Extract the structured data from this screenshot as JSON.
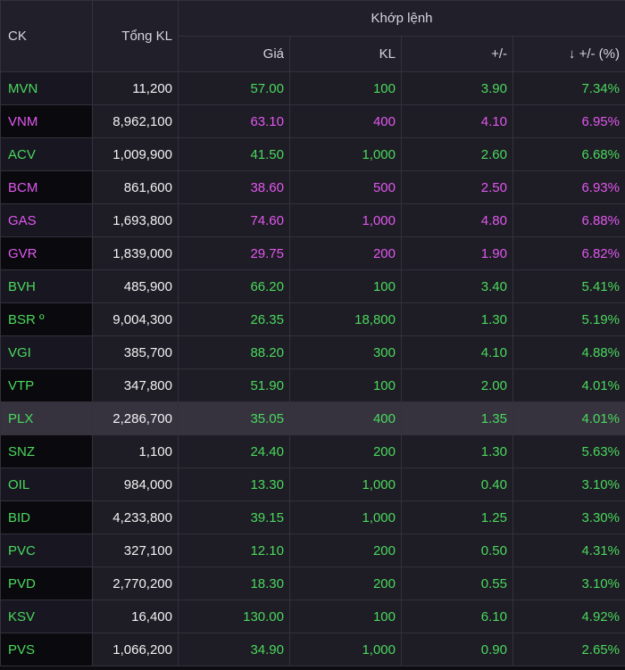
{
  "header": {
    "ck": "CK",
    "total_volume": "Tổng KL",
    "match_group": "Khớp lệnh",
    "price": "Giá",
    "volume": "KL",
    "change": "+/-",
    "change_pct": "↓ +/- (%)"
  },
  "colors": {
    "up": "#4ad95e",
    "ceiling": "#e058f0",
    "neutral": "#f2f2f4"
  },
  "rows": [
    {
      "symbol": "MVN",
      "total_volume": "11,200",
      "price": "57.00",
      "volume": "100",
      "change": "3.90",
      "change_pct": "7.34%",
      "status": "up"
    },
    {
      "symbol": "VNM",
      "total_volume": "8,962,100",
      "price": "63.10",
      "volume": "400",
      "change": "4.10",
      "change_pct": "6.95%",
      "status": "ceil"
    },
    {
      "symbol": "ACV",
      "total_volume": "1,009,900",
      "price": "41.50",
      "volume": "1,000",
      "change": "2.60",
      "change_pct": "6.68%",
      "status": "up"
    },
    {
      "symbol": "BCM",
      "total_volume": "861,600",
      "price": "38.60",
      "volume": "500",
      "change": "2.50",
      "change_pct": "6.93%",
      "status": "ceil"
    },
    {
      "symbol": "GAS",
      "total_volume": "1,693,800",
      "price": "74.60",
      "volume": "1,000",
      "change": "4.80",
      "change_pct": "6.88%",
      "status": "ceil"
    },
    {
      "symbol": "GVR",
      "total_volume": "1,839,000",
      "price": "29.75",
      "volume": "200",
      "change": "1.90",
      "change_pct": "6.82%",
      "status": "ceil"
    },
    {
      "symbol": "BVH",
      "total_volume": "485,900",
      "price": "66.20",
      "volume": "100",
      "change": "3.40",
      "change_pct": "5.41%",
      "status": "up"
    },
    {
      "symbol": "BSR º",
      "total_volume": "9,004,300",
      "price": "26.35",
      "volume": "18,800",
      "change": "1.30",
      "change_pct": "5.19%",
      "status": "up"
    },
    {
      "symbol": "VGI",
      "total_volume": "385,700",
      "price": "88.20",
      "volume": "300",
      "change": "4.10",
      "change_pct": "4.88%",
      "status": "up"
    },
    {
      "symbol": "VTP",
      "total_volume": "347,800",
      "price": "51.90",
      "volume": "100",
      "change": "2.00",
      "change_pct": "4.01%",
      "status": "up"
    },
    {
      "symbol": "PLX",
      "total_volume": "2,286,700",
      "price": "35.05",
      "volume": "400",
      "change": "1.35",
      "change_pct": "4.01%",
      "status": "up",
      "highlight": true
    },
    {
      "symbol": "SNZ",
      "total_volume": "1,100",
      "price": "24.40",
      "volume": "200",
      "change": "1.30",
      "change_pct": "5.63%",
      "status": "up"
    },
    {
      "symbol": "OIL",
      "total_volume": "984,000",
      "price": "13.30",
      "volume": "1,000",
      "change": "0.40",
      "change_pct": "3.10%",
      "status": "up"
    },
    {
      "symbol": "BID",
      "total_volume": "4,233,800",
      "price": "39.15",
      "volume": "1,000",
      "change": "1.25",
      "change_pct": "3.30%",
      "status": "up"
    },
    {
      "symbol": "PVC",
      "total_volume": "327,100",
      "price": "12.10",
      "volume": "200",
      "change": "0.50",
      "change_pct": "4.31%",
      "status": "up"
    },
    {
      "symbol": "PVD",
      "total_volume": "2,770,200",
      "price": "18.30",
      "volume": "200",
      "change": "0.55",
      "change_pct": "3.10%",
      "status": "up"
    },
    {
      "symbol": "KSV",
      "total_volume": "16,400",
      "price": "130.00",
      "volume": "100",
      "change": "6.10",
      "change_pct": "4.92%",
      "status": "up"
    },
    {
      "symbol": "PVS",
      "total_volume": "1,066,200",
      "price": "34.90",
      "volume": "1,000",
      "change": "0.90",
      "change_pct": "2.65%",
      "status": "up"
    }
  ]
}
